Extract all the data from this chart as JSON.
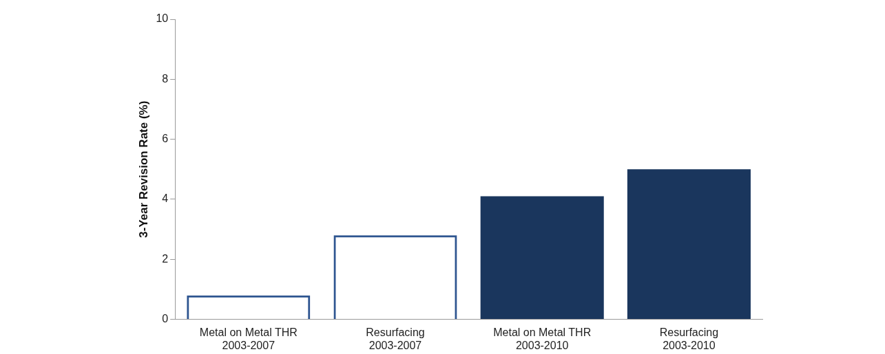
{
  "chart_data": {
    "type": "bar",
    "ylabel": "3-Year Revision Rate (%)",
    "categories": [
      "Metal on Metal THR\n2003-2007",
      "Resurfacing\n2003-2007",
      "Metal on Metal THR\n2003-2010",
      "Resurfacing\n2003-2010"
    ],
    "series": [
      {
        "color": "#2e5590",
        "values": [
          0.8,
          2.8,
          null,
          null
        ]
      },
      {
        "color": "#1a365d",
        "values": [
          null,
          null,
          4.1,
          5.0
        ]
      }
    ],
    "ylim": [
      0,
      10
    ],
    "yticks": [
      0,
      2,
      4,
      6,
      8,
      10
    ],
    "grid": false,
    "legend": false
  }
}
